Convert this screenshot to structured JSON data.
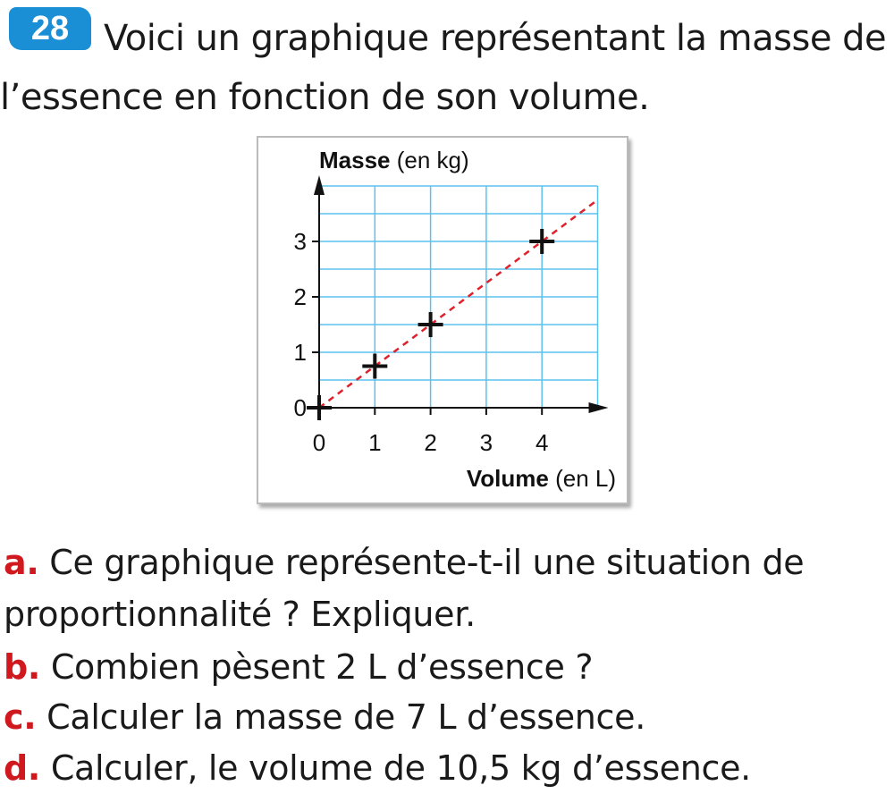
{
  "exercise": {
    "number": "28",
    "intro": "Voici un graphique représentant la masse de l’essence en fonction de son volume.",
    "badge_color": "#1a8fd6"
  },
  "questions": [
    {
      "letter": "a.",
      "text": "Ce graphique représente-t-il une situation de proportionnalité ? Expliquer."
    },
    {
      "letter": "b.",
      "text": "Combien pèsent 2 L d’essence ?"
    },
    {
      "letter": "c.",
      "text": "Calculer la masse de 7 L d’essence."
    },
    {
      "letter": "d.",
      "text": "Calculer, le volume de 10,5 kg d’essence."
    }
  ],
  "chart_data": {
    "type": "scatter",
    "ylabel_bold": "Masse",
    "ylabel_rest": "(en kg)",
    "xlabel_bold": "Volume",
    "xlabel_rest": "(en L)",
    "xlim": [
      0,
      5
    ],
    "ylim": [
      0,
      4
    ],
    "xticks": [
      "0",
      "1",
      "2",
      "3",
      "4"
    ],
    "yticks": [
      "0",
      "1",
      "2",
      "3"
    ],
    "grid": true,
    "grid_color": "#5bc2f0",
    "points": [
      {
        "x": 0,
        "y": 0
      },
      {
        "x": 1,
        "y": 0.75
      },
      {
        "x": 2,
        "y": 1.5
      },
      {
        "x": 4,
        "y": 3
      }
    ],
    "trend_line": {
      "slope": 0.75,
      "style": "dashed",
      "color": "#e0202a"
    }
  }
}
